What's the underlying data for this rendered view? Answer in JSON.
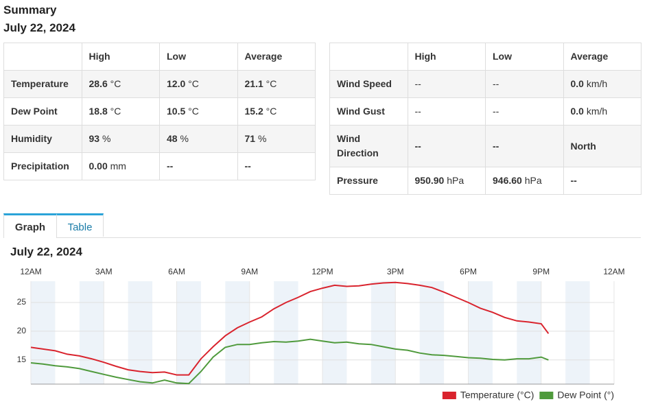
{
  "header": {
    "title": "Summary",
    "date": "July 22, 2024"
  },
  "tables": [
    {
      "columns": [
        "High",
        "Low",
        "Average"
      ],
      "rows": [
        {
          "label": "Temperature",
          "cells": [
            {
              "value": "28.6",
              "unit": "°C"
            },
            {
              "value": "12.0",
              "unit": "°C"
            },
            {
              "value": "21.1",
              "unit": "°C"
            }
          ]
        },
        {
          "label": "Dew Point",
          "cells": [
            {
              "value": "18.8",
              "unit": "°C"
            },
            {
              "value": "10.5",
              "unit": "°C"
            },
            {
              "value": "15.2",
              "unit": "°C"
            }
          ]
        },
        {
          "label": "Humidity",
          "cells": [
            {
              "value": "93",
              "unit": "%"
            },
            {
              "value": "48",
              "unit": "%"
            },
            {
              "value": "71",
              "unit": "%"
            }
          ]
        },
        {
          "label": "Precipitation",
          "cells": [
            {
              "value": "0.00",
              "unit": "mm"
            },
            {
              "value": "--"
            },
            {
              "value": "--"
            }
          ]
        }
      ]
    },
    {
      "columns": [
        "High",
        "Low",
        "Average"
      ],
      "rows": [
        {
          "label": "Wind Speed",
          "cells": [
            {
              "text": "--"
            },
            {
              "text": "--"
            },
            {
              "value": "0.0",
              "unit": "km/h"
            }
          ]
        },
        {
          "label": "Wind Gust",
          "cells": [
            {
              "text": "--"
            },
            {
              "text": "--"
            },
            {
              "value": "0.0",
              "unit": "km/h"
            }
          ]
        },
        {
          "label": "Wind Direction",
          "cells": [
            {
              "value": "--"
            },
            {
              "value": "--"
            },
            {
              "value": "North"
            }
          ]
        },
        {
          "label": "Pressure",
          "cells": [
            {
              "value": "950.90",
              "unit": "hPa"
            },
            {
              "value": "946.60",
              "unit": "hPa"
            },
            {
              "value": "--"
            }
          ]
        }
      ]
    }
  ],
  "tabs": [
    "Graph",
    "Table"
  ],
  "chart_data": {
    "type": "line",
    "title": "July 22, 2024",
    "x": [
      0,
      0.5,
      1,
      1.5,
      2,
      2.5,
      3,
      3.5,
      4,
      4.5,
      5,
      5.5,
      6,
      6.5,
      7,
      7.5,
      8,
      8.5,
      9,
      9.5,
      10,
      10.5,
      11,
      11.5,
      12,
      12.5,
      13,
      13.5,
      14,
      14.5,
      15,
      15.5,
      16,
      16.5,
      17,
      17.5,
      18,
      18.5,
      19,
      19.5,
      20,
      20.5,
      21,
      21.3
    ],
    "xlim": [
      0,
      24
    ],
    "xticks": [
      {
        "value": 0,
        "label": "12AM"
      },
      {
        "value": 3,
        "label": "3AM"
      },
      {
        "value": 6,
        "label": "6AM"
      },
      {
        "value": 9,
        "label": "9AM"
      },
      {
        "value": 12,
        "label": "12PM"
      },
      {
        "value": 15,
        "label": "3PM"
      },
      {
        "value": 18,
        "label": "6PM"
      },
      {
        "value": 21,
        "label": "9PM"
      },
      {
        "value": 24,
        "label": "12AM"
      }
    ],
    "ylim": [
      10.8,
      28.7
    ],
    "yticks": [
      15,
      20,
      25
    ],
    "grid": true,
    "legend": "bottom-right",
    "series": [
      {
        "name": "Temperature (°C)",
        "color": "#d9232d",
        "values": [
          17.2,
          16.9,
          16.6,
          16.0,
          15.7,
          15.2,
          14.6,
          13.9,
          13.3,
          13.0,
          12.8,
          12.9,
          12.4,
          12.4,
          15.2,
          17.3,
          19.2,
          20.6,
          21.6,
          22.5,
          23.9,
          25.0,
          25.9,
          26.9,
          27.5,
          28.0,
          27.8,
          27.9,
          28.2,
          28.4,
          28.5,
          28.3,
          28.0,
          27.6,
          26.8,
          25.9,
          25.0,
          24.0,
          23.3,
          22.4,
          21.8,
          21.6,
          21.3,
          19.6
        ]
      },
      {
        "name": "Dew Point (°)",
        "color": "#4f9a3c",
        "values": [
          14.5,
          14.3,
          14.0,
          13.8,
          13.5,
          13.0,
          12.5,
          12.0,
          11.6,
          11.2,
          11.0,
          11.5,
          11.0,
          10.9,
          13.0,
          15.5,
          17.2,
          17.7,
          17.7,
          18.0,
          18.2,
          18.1,
          18.3,
          18.6,
          18.3,
          18.0,
          18.1,
          17.8,
          17.7,
          17.3,
          16.9,
          16.7,
          16.2,
          15.9,
          15.8,
          15.6,
          15.4,
          15.3,
          15.1,
          15.0,
          15.2,
          15.2,
          15.5,
          15.0
        ]
      }
    ]
  }
}
